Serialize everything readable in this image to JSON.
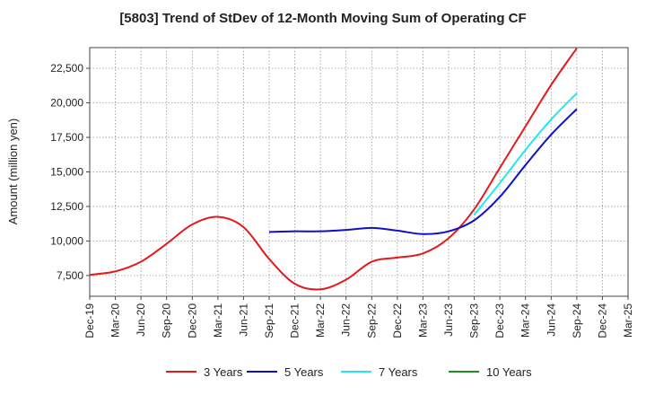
{
  "chart_data": {
    "type": "line",
    "title": "[5803]  Trend of StDev of 12-Month Moving Sum of Operating CF",
    "xlabel": "",
    "ylabel": "Amount (million yen)",
    "ylim": [
      6000,
      24000
    ],
    "yticks": [
      7500,
      10000,
      12500,
      15000,
      17500,
      20000,
      22500
    ],
    "ytick_labels": [
      "7,500",
      "10,000",
      "12,500",
      "15,000",
      "17,500",
      "20,000",
      "22,500"
    ],
    "x_start": "Dec-19",
    "x_end": "Mar-25",
    "xtick_labels": [
      "Dec-19",
      "Mar-20",
      "Jun-20",
      "Sep-20",
      "Dec-20",
      "Mar-21",
      "Jun-21",
      "Sep-21",
      "Dec-21",
      "Mar-22",
      "Jun-22",
      "Sep-22",
      "Dec-22",
      "Mar-23",
      "Jun-23",
      "Sep-23",
      "Dec-23",
      "Mar-24",
      "Jun-24",
      "Sep-24",
      "Dec-24",
      "Mar-25"
    ],
    "grid": true,
    "legend_position": "bottom",
    "series": [
      {
        "name": "3 Years",
        "color": "#e31a1c",
        "x": [
          "Dec-19",
          "Mar-20",
          "Jun-20",
          "Sep-20",
          "Dec-20",
          "Mar-21",
          "Jun-21",
          "Sep-21",
          "Dec-21",
          "Mar-22",
          "Jun-22",
          "Sep-22",
          "Dec-22",
          "Mar-23",
          "Jun-23",
          "Sep-23",
          "Dec-23",
          "Mar-24",
          "Jun-24",
          "Sep-24"
        ],
        "values": [
          7550,
          7800,
          8500,
          9800,
          11200,
          11750,
          11000,
          8700,
          6900,
          6500,
          7200,
          8500,
          8800,
          9100,
          10200,
          12300,
          15300,
          18300,
          21300,
          23950
        ]
      },
      {
        "name": "5 Years",
        "color": "#1010c8",
        "x": [
          "Sep-21",
          "Dec-21",
          "Mar-22",
          "Jun-22",
          "Sep-22",
          "Dec-22",
          "Mar-23",
          "Jun-23",
          "Sep-23",
          "Dec-23",
          "Mar-24",
          "Jun-24",
          "Sep-24"
        ],
        "values": [
          10650,
          10700,
          10700,
          10800,
          10950,
          10750,
          10500,
          10700,
          11500,
          13200,
          15500,
          17700,
          19550
        ]
      },
      {
        "name": "7 Years",
        "color": "#20e8f0",
        "x": [
          "Sep-23",
          "Dec-23",
          "Mar-24",
          "Jun-24",
          "Sep-24"
        ],
        "values": [
          11900,
          14200,
          16600,
          18800,
          20700
        ]
      },
      {
        "name": "10 Years",
        "color": "#228b22",
        "x": [],
        "values": []
      }
    ]
  }
}
